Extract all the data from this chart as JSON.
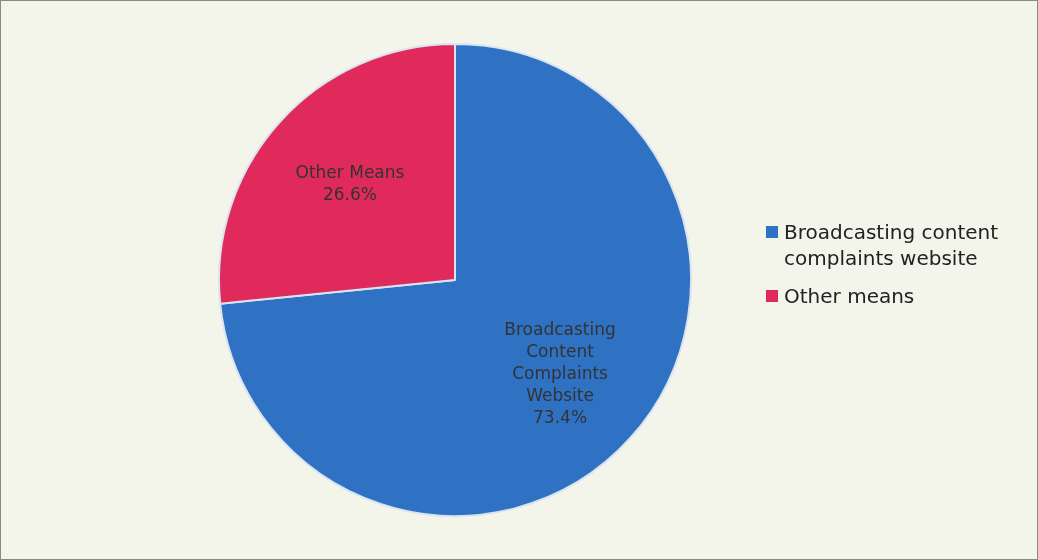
{
  "chart_data": {
    "type": "pie",
    "categories": [
      "Broadcasting content complaints website",
      "Other means"
    ],
    "values": [
      73.4,
      26.6
    ],
    "colors": [
      "#2f72c4",
      "#e02a5c"
    ],
    "value_labels": [
      "Broadcasting Content Complaints Website 73.4%",
      "Other Means 26.6%"
    ],
    "legend": "right"
  }
}
